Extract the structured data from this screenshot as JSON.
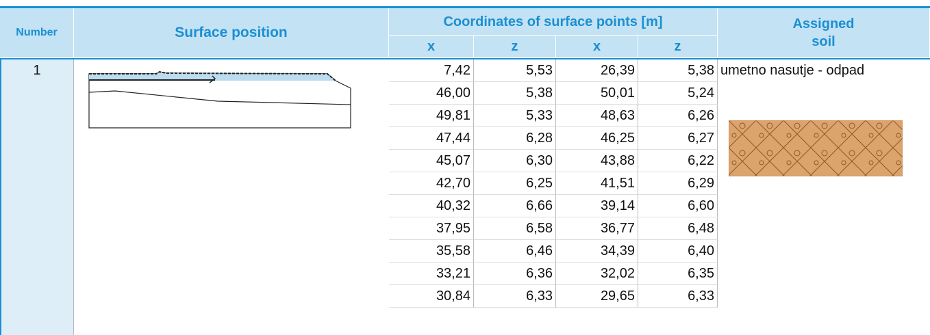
{
  "header": {
    "number": "Number",
    "surface_position": "Surface position",
    "coordinates": "Coordinates of surface points [m]",
    "x1": "x",
    "z1": "z",
    "x2": "x",
    "z2": "z",
    "assigned_soil": "Assigned\nsoil"
  },
  "rows": [
    {
      "number": "1",
      "soil": "umetno nasutje - odpad",
      "points": [
        [
          "7,42",
          "5,53",
          "26,39",
          "5,38"
        ],
        [
          "46,00",
          "5,38",
          "50,01",
          "5,24"
        ],
        [
          "49,81",
          "5,33",
          "48,63",
          "6,26"
        ],
        [
          "47,44",
          "6,28",
          "46,25",
          "6,27"
        ],
        [
          "45,07",
          "6,30",
          "43,88",
          "6,22"
        ],
        [
          "42,70",
          "6,25",
          "41,51",
          "6,29"
        ],
        [
          "40,32",
          "6,66",
          "39,14",
          "6,60"
        ],
        [
          "37,95",
          "6,58",
          "36,77",
          "6,48"
        ],
        [
          "35,58",
          "6,46",
          "34,39",
          "6,40"
        ],
        [
          "33,21",
          "6,36",
          "32,02",
          "6,35"
        ],
        [
          "30,84",
          "6,33",
          "29,65",
          "6,33"
        ]
      ]
    }
  ]
}
